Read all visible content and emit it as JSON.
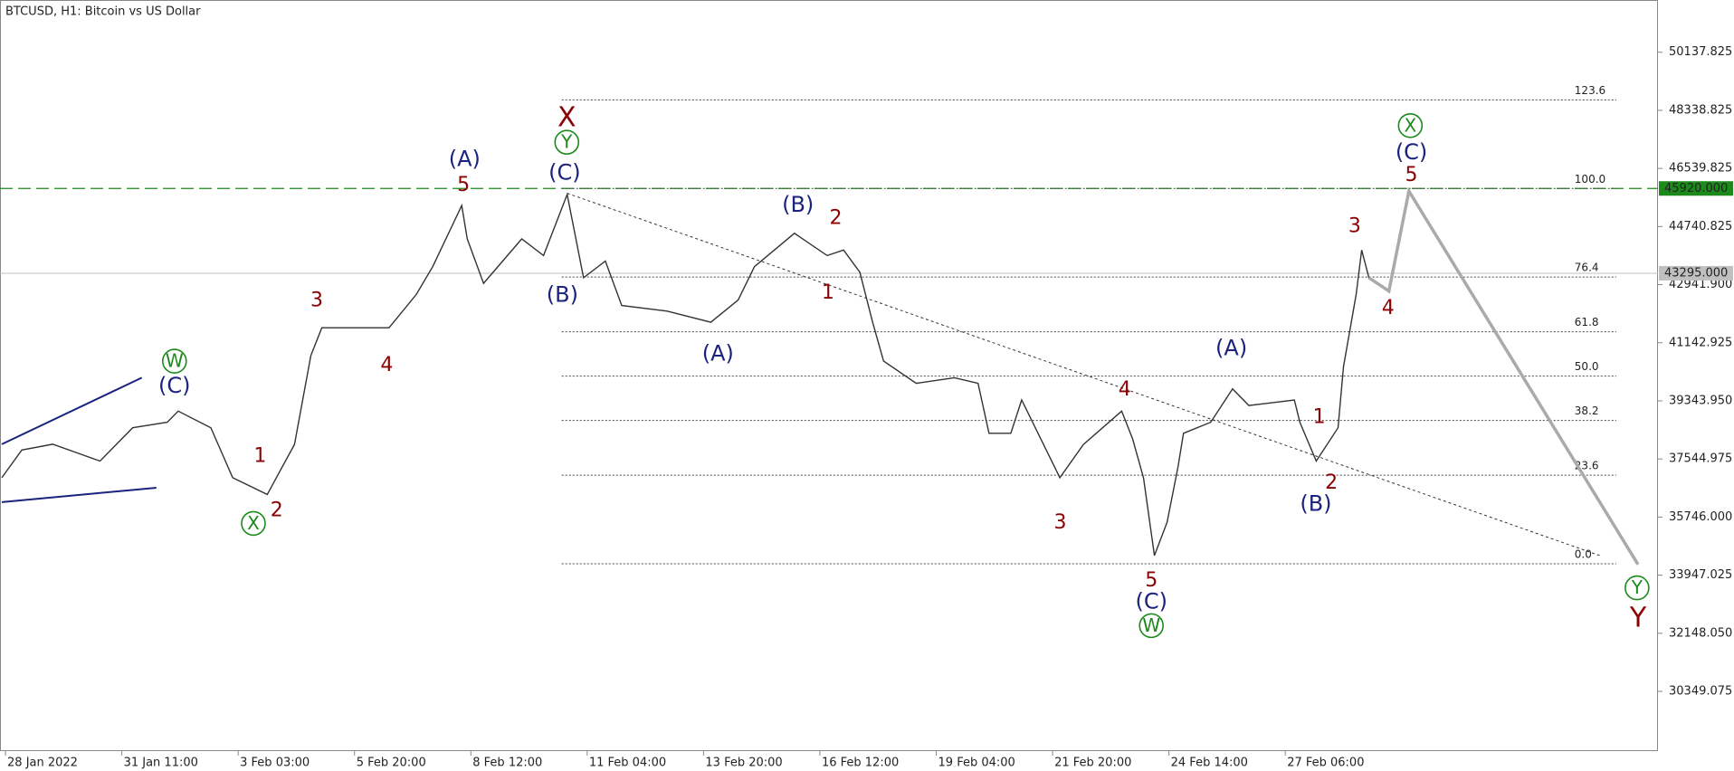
{
  "chart_data": {
    "type": "line",
    "title": "BTCUSD, H1:  Bitcoin vs US Dollar",
    "x": [
      -2,
      9,
      26,
      52,
      70,
      89,
      95,
      113,
      125,
      144,
      159,
      168,
      174,
      211,
      226,
      235,
      251,
      254,
      263,
      284,
      296,
      309,
      318,
      330,
      339,
      364,
      388,
      403,
      412,
      434,
      452,
      461,
      470,
      477,
      483,
      501,
      522,
      535,
      541,
      553,
      559,
      568,
      580,
      593,
      614,
      620,
      626,
      632,
      639,
      645,
      648,
      663,
      675,
      684,
      709,
      712,
      721,
      733,
      736,
      743,
      746,
      750,
      755
    ],
    "series": [
      {
        "color": "#333333",
        "values": [
          36963,
          37823,
          38000,
          37479,
          38511,
          38683,
          39027,
          38511,
          36963,
          36447,
          37995,
          40747,
          41607,
          41607,
          42639,
          43499,
          45391,
          44359,
          42983,
          44359,
          43843,
          45735,
          43155,
          43671,
          42295,
          42123,
          41779,
          42467,
          43499,
          44531,
          43843,
          44015,
          43327,
          41779,
          40575,
          39887,
          40059,
          39887,
          38339,
          38339,
          39371,
          38339,
          36963,
          37995,
          39027,
          38167,
          36963,
          34555,
          35587,
          37307,
          38339,
          38683,
          39715,
          39199,
          39371,
          38683,
          37479,
          38511,
          40403,
          42639,
          44015,
          43155,
          42983
        ]
      }
    ],
    "forecast": {
      "color": "#aaaaaa",
      "x": [
        750,
        761,
        772,
        898
      ],
      "values": [
        43155,
        42742,
        45838,
        34279
      ]
    },
    "trendline": {
      "color": "#333333",
      "x": [
        309,
        877
      ],
      "values": [
        45770,
        34555
      ]
    },
    "wedge": {
      "color": "#1a237e",
      "upper": {
        "x": [
          -2,
          75
        ],
        "values": [
          38000,
          40059
        ]
      },
      "lower": {
        "x": [
          -2,
          83
        ],
        "values": [
          36207,
          36654
        ]
      }
    },
    "fibonacci": {
      "color": "#444444",
      "x": [
        306,
        886
      ],
      "low": 34300,
      "high": 45920,
      "levels": [
        123.6,
        {
          "value": 100,
          "label": "100.0"
        },
        76.4,
        61.8,
        {
          "value": 50,
          "label": "50.0"
        },
        38.2,
        23.6,
        {
          "value": 0,
          "label": "0.0"
        }
      ]
    },
    "resistance": {
      "value": 45920,
      "label": "45920.000",
      "color": "#1b8a1b"
    },
    "current_price": {
      "value": 43295,
      "label": "43295.000",
      "color": "#c0c0c0"
    },
    "xlim": [
      -3,
      909
    ],
    "xticks": [
      {
        "value": 0,
        "label": "28 Jan 2022"
      },
      {
        "value": 64,
        "label": "31 Jan 11:00"
      },
      {
        "value": 128,
        "label": "3 Feb 03:00"
      },
      {
        "value": 192,
        "label": "5 Feb 20:00"
      },
      {
        "value": 256,
        "label": "8 Feb 12:00"
      },
      {
        "value": 320,
        "label": "11 Feb 04:00"
      },
      {
        "value": 384,
        "label": "13 Feb 20:00"
      },
      {
        "value": 448,
        "label": "16 Feb 12:00"
      },
      {
        "value": 512,
        "label": "19 Feb 04:00"
      },
      {
        "value": 576,
        "label": "21 Feb 20:00"
      },
      {
        "value": 640,
        "label": "24 Feb 14:00"
      },
      {
        "value": 704,
        "label": "27 Feb 06:00"
      }
    ],
    "ylim": [
      28500,
      51755
    ],
    "yticks": [
      50137.825,
      48338.825,
      46539.825,
      44740.825,
      {
        "value": 42941.9,
        "label": "42941.900"
      },
      41142.925,
      {
        "value": 39343.95,
        "label": "39343.950"
      },
      37544.975,
      {
        "value": 35746,
        "label": "35746.000"
      },
      33947.025,
      {
        "value": 32148.05,
        "label": "32148.050"
      },
      30349.075
    ],
    "annotations": [
      {
        "text": "X",
        "color": "#8b0000"
      },
      {
        "text": "Y",
        "color": "#1b8a1b",
        "circled": true
      },
      {
        "text": "(C)",
        "color": "#1a237e"
      },
      {
        "text": "(A)",
        "color": "#1a237e"
      },
      {
        "text": "5",
        "color": "#8b0000"
      },
      {
        "text": "(B)",
        "color": "#1a237e"
      },
      {
        "text": "(B)",
        "color": "#1a237e"
      },
      {
        "text": "2",
        "color": "#8b0000"
      },
      {
        "text": "1",
        "color": "#8b0000"
      },
      {
        "text": "(A)",
        "color": "#1a237e"
      },
      {
        "text": "3",
        "color": "#8b0000"
      },
      {
        "text": "4",
        "color": "#8b0000"
      },
      {
        "text": "W",
        "color": "#1b8a1b",
        "circled": true
      },
      {
        "text": "(C)",
        "color": "#1a237e"
      },
      {
        "text": "1",
        "color": "#8b0000"
      },
      {
        "text": "2",
        "color": "#8b0000"
      },
      {
        "text": "X",
        "color": "#1b8a1b",
        "circled": true
      },
      {
        "text": "4",
        "color": "#8b0000"
      },
      {
        "text": "3",
        "color": "#8b0000"
      },
      {
        "text": "5",
        "color": "#8b0000"
      },
      {
        "text": "(C)",
        "color": "#1a237e"
      },
      {
        "text": "W",
        "color": "#1b8a1b",
        "circled": true
      },
      {
        "text": "(A)",
        "color": "#1a237e"
      },
      {
        "text": "1",
        "color": "#8b0000"
      },
      {
        "text": "2",
        "color": "#8b0000"
      },
      {
        "text": "(B)",
        "color": "#1a237e"
      },
      {
        "text": "3",
        "color": "#8b0000"
      },
      {
        "text": "4",
        "color": "#8b0000"
      },
      {
        "text": "X",
        "color": "#1b8a1b",
        "circled": true
      },
      {
        "text": "(C)",
        "color": "#1a237e"
      },
      {
        "text": "5",
        "color": "#8b0000"
      },
      {
        "text": "Y",
        "color": "#1b8a1b",
        "circled": true
      },
      {
        "text": "Y",
        "color": "#8b0000"
      }
    ]
  }
}
